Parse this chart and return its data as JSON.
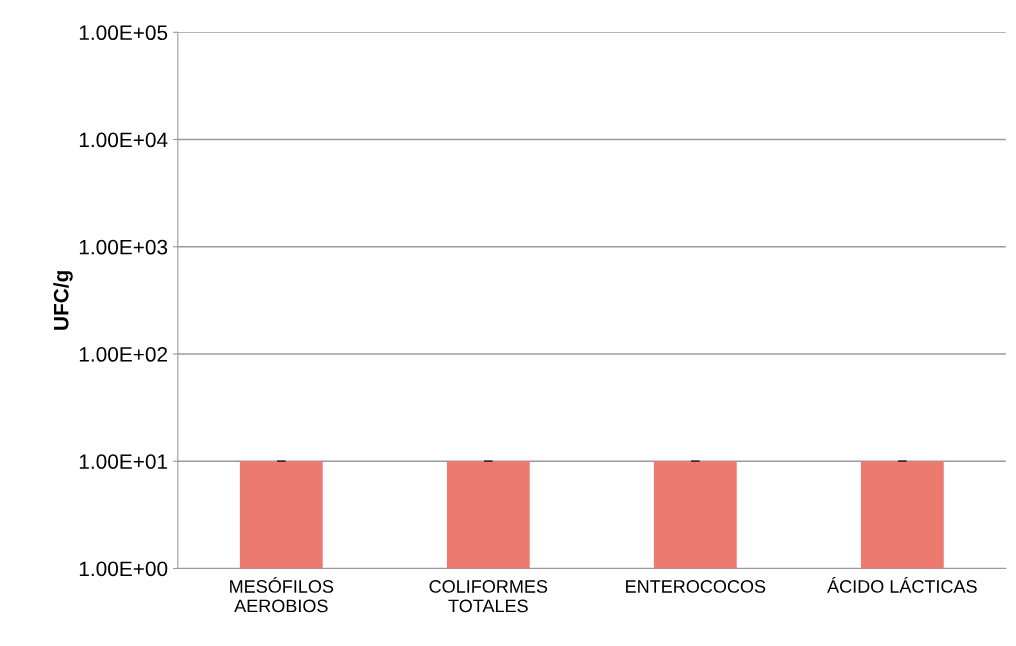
{
  "chart_data": {
    "type": "bar",
    "ylabel": "UFC/g",
    "categories": [
      "MESÓFILOS\nAEROBIOS",
      "COLIFORMES\nTOTALES",
      "ENTEROCOCOS",
      "ÁCIDO LÁCTICAS"
    ],
    "values": [
      10,
      10,
      10,
      10
    ],
    "errors": [
      0,
      0,
      0,
      0
    ],
    "color": "#ec7a71",
    "log": "y",
    "ylim": [
      1,
      100000
    ],
    "yticks": [
      {
        "value": 1,
        "label": "1.00E+00"
      },
      {
        "value": 10,
        "label": "1.00E+01"
      },
      {
        "value": 100,
        "label": "1.00E+02"
      },
      {
        "value": 1000,
        "label": "1.00E+03"
      },
      {
        "value": 10000,
        "label": "1.00E+04"
      },
      {
        "value": 100000,
        "label": "1.00E+05"
      }
    ],
    "grid": "y"
  }
}
